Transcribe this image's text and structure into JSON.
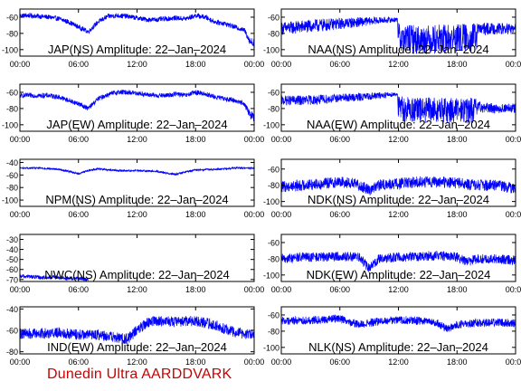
{
  "footer_text": "Dunedin Ultra AARDDVARK",
  "colors": {
    "trace": "#0000ff",
    "footer": "#cc0000",
    "axis": "#000000",
    "background": "#ffffff"
  },
  "chart_data": [
    {
      "type": "line",
      "title": "JAP(NS) Amplitude: 22–Jan–2024",
      "x_ticks": [
        "00:00",
        "06:00",
        "12:00",
        "18:00",
        "00:00"
      ],
      "xlim_hours": [
        0,
        24
      ],
      "y_ticks": [
        -60,
        -80,
        -100
      ],
      "ylim": [
        -108,
        -50
      ],
      "series": [
        {
          "x_hours": [
            0,
            1,
            2,
            3,
            4,
            5,
            6,
            7,
            8,
            9,
            10,
            11,
            12,
            13,
            14,
            15,
            16,
            17,
            18,
            19,
            20,
            21,
            22,
            23,
            23.6,
            24
          ],
          "center": [
            -58,
            -58,
            -59,
            -60,
            -62,
            -66,
            -72,
            -78,
            -66,
            -59,
            -58,
            -59,
            -61,
            -63,
            -63,
            -62,
            -61,
            -62,
            -58,
            -60,
            -66,
            -68,
            -72,
            -76,
            -90,
            -92
          ],
          "band": [
            3,
            3,
            3,
            3,
            3,
            3,
            3,
            3,
            3,
            3,
            3,
            3,
            3,
            3,
            3,
            3,
            3,
            3,
            3,
            3,
            3,
            3,
            3,
            3,
            5,
            6
          ]
        }
      ]
    },
    {
      "type": "line",
      "title": "NAA(NS) Amplitude: 22–Jan–2024",
      "x_ticks": [
        "00:00",
        "06:00",
        "12:00",
        "18:00",
        "00:00"
      ],
      "xlim_hours": [
        0,
        24
      ],
      "y_ticks": [
        -60,
        -80,
        -100
      ],
      "ylim": [
        -108,
        -50
      ],
      "series": [
        {
          "x_hours": [
            0,
            2,
            4,
            6,
            8,
            10,
            11.9,
            12,
            14,
            16,
            18,
            20,
            20.1,
            22,
            24
          ],
          "center": [
            -74,
            -72,
            -70,
            -68,
            -66,
            -64,
            -63,
            -85,
            -88,
            -87,
            -86,
            -85,
            -75,
            -74,
            -75
          ],
          "band": [
            8,
            8,
            8,
            7,
            6,
            4,
            3,
            18,
            18,
            18,
            18,
            18,
            8,
            7,
            7
          ]
        }
      ]
    },
    {
      "type": "line",
      "title": "JAP(EW) Amplitude: 22–Jan–2024",
      "x_ticks": [
        "00:00",
        "06:00",
        "12:00",
        "18:00",
        "00:00"
      ],
      "xlim_hours": [
        0,
        24
      ],
      "y_ticks": [
        -60,
        -80,
        -100
      ],
      "ylim": [
        -108,
        -50
      ],
      "series": [
        {
          "x_hours": [
            0,
            1,
            2,
            3,
            4,
            5,
            6,
            7,
            8,
            9,
            10,
            11,
            12,
            13,
            14,
            15,
            16,
            17,
            18,
            19,
            20,
            21,
            22,
            23,
            23.6,
            24
          ],
          "center": [
            -64,
            -64,
            -64,
            -64,
            -66,
            -70,
            -74,
            -80,
            -68,
            -63,
            -60,
            -60,
            -61,
            -63,
            -64,
            -64,
            -62,
            -64,
            -60,
            -62,
            -66,
            -68,
            -70,
            -74,
            -88,
            -90
          ],
          "band": [
            3,
            3,
            3,
            3,
            3,
            3,
            3,
            3,
            3,
            3,
            3,
            3,
            3,
            3,
            3,
            3,
            3,
            3,
            3,
            3,
            3,
            3,
            3,
            3,
            5,
            6
          ]
        }
      ]
    },
    {
      "type": "line",
      "title": "NAA(EW) Amplitude: 22–Jan–2024",
      "x_ticks": [
        "00:00",
        "06:00",
        "12:00",
        "18:00",
        "00:00"
      ],
      "xlim_hours": [
        0,
        24
      ],
      "y_ticks": [
        -60,
        -80,
        -100
      ],
      "ylim": [
        -108,
        -50
      ],
      "series": [
        {
          "x_hours": [
            0,
            2,
            4,
            6,
            8,
            10,
            11.9,
            12,
            14,
            16,
            18,
            20,
            20.1,
            22,
            24
          ],
          "center": [
            -70,
            -70,
            -69,
            -67,
            -66,
            -64,
            -62,
            -80,
            -82,
            -82,
            -82,
            -82,
            -78,
            -80,
            -80
          ],
          "band": [
            6,
            6,
            6,
            5,
            5,
            4,
            3,
            16,
            16,
            16,
            16,
            16,
            7,
            6,
            6
          ]
        }
      ]
    },
    {
      "type": "line",
      "title": "NPM(NS) Amplitude: 22–Jan–2024",
      "x_ticks": [
        "00:00",
        "06:00",
        "12:00",
        "18:00",
        "00:00"
      ],
      "xlim_hours": [
        0,
        24
      ],
      "y_ticks": [
        -40,
        -60,
        -80,
        -100
      ],
      "ylim": [
        -110,
        -35
      ],
      "series": [
        {
          "x_hours": [
            0,
            2,
            4,
            5,
            6,
            7,
            8,
            10,
            12,
            14,
            15,
            16,
            17,
            18,
            20,
            22,
            24
          ],
          "center": [
            -49,
            -49,
            -51,
            -54,
            -58,
            -53,
            -50,
            -53,
            -53,
            -54,
            -57,
            -59,
            -55,
            -52,
            -51,
            -49,
            -49
          ],
          "band": [
            1.5,
            1.5,
            1.5,
            1.5,
            1.5,
            1.5,
            1.5,
            1.5,
            1.5,
            1.5,
            1.5,
            1.5,
            1.5,
            1.5,
            1.5,
            1.5,
            1.5
          ]
        }
      ]
    },
    {
      "type": "line",
      "title": "NDK(NS) Amplitude: 22–Jan–2024",
      "x_ticks": [
        "00:00",
        "06:00",
        "12:00",
        "18:00",
        "00:00"
      ],
      "xlim_hours": [
        0,
        24
      ],
      "y_ticks": [
        -60,
        -80,
        -100
      ],
      "ylim": [
        -106,
        -48
      ],
      "series": [
        {
          "x_hours": [
            0,
            2,
            4,
            6,
            7,
            8,
            9,
            10,
            12,
            14,
            16,
            18,
            19,
            20,
            22,
            23,
            24
          ],
          "center": [
            -82,
            -80,
            -78,
            -76,
            -77,
            -80,
            -86,
            -80,
            -78,
            -76,
            -76,
            -77,
            -79,
            -80,
            -80,
            -82,
            -84
          ],
          "band": [
            7,
            7,
            7,
            7,
            7,
            7,
            7,
            7,
            7,
            7,
            7,
            7,
            7,
            7,
            7,
            7,
            7
          ]
        }
      ]
    },
    {
      "type": "line",
      "title": "NWC(NS) Amplitude: 22–Jan–2024",
      "x_ticks": [
        "00:00",
        "06:00",
        "12:00",
        "18:00",
        "00:00"
      ],
      "xlim_hours": [
        0,
        24
      ],
      "y_ticks": [
        -30,
        -40,
        -50,
        -60,
        -70
      ],
      "ylim": [
        -72,
        -25
      ],
      "series": [
        {
          "x_hours": [
            0,
            1,
            2,
            3,
            4,
            5,
            6,
            7
          ],
          "center": [
            -67,
            -67,
            -68,
            -68,
            -68,
            -69,
            -69,
            -70
          ],
          "band": [
            2,
            2,
            2,
            2,
            2,
            2,
            2,
            2
          ]
        }
      ]
    },
    {
      "type": "line",
      "title": "NDK(EW) Amplitude: 22–Jan–2024",
      "x_ticks": [
        "00:00",
        "06:00",
        "12:00",
        "18:00",
        "00:00"
      ],
      "xlim_hours": [
        0,
        24
      ],
      "y_ticks": [
        -60,
        -80,
        -100
      ],
      "ylim": [
        -108,
        -50
      ],
      "series": [
        {
          "x_hours": [
            0,
            2,
            4,
            6,
            8,
            9,
            10,
            12,
            14,
            16,
            18,
            19,
            20,
            22,
            24
          ],
          "center": [
            -80,
            -78,
            -78,
            -77,
            -78,
            -92,
            -80,
            -78,
            -77,
            -76,
            -78,
            -84,
            -80,
            -80,
            -82
          ],
          "band": [
            6,
            6,
            6,
            6,
            6,
            6,
            6,
            6,
            6,
            6,
            6,
            6,
            6,
            6,
            6
          ]
        }
      ]
    },
    {
      "type": "line",
      "title": "IND(EW) Amplitude: 22–Jan–2024",
      "x_ticks": [
        "00:00",
        "06:00",
        "12:00",
        "18:00",
        "00:00"
      ],
      "xlim_hours": [
        0,
        24
      ],
      "y_ticks": [
        -40,
        -60,
        -80
      ],
      "ylim": [
        -82,
        -38
      ],
      "series": [
        {
          "x_hours": [
            0,
            2,
            4,
            6,
            8,
            10,
            11,
            12,
            13,
            14,
            16,
            18,
            20,
            22,
            24
          ],
          "center": [
            -63,
            -63,
            -62,
            -64,
            -64,
            -67,
            -68,
            -60,
            -53,
            -51,
            -52,
            -51,
            -55,
            -62,
            -64
          ],
          "band": [
            5,
            5,
            5,
            5,
            5,
            5,
            5,
            5,
            5,
            5,
            5,
            5,
            5,
            5,
            5
          ]
        }
      ]
    },
    {
      "type": "line",
      "title": "NLK(NS) Amplitude: 22–Jan–2024",
      "x_ticks": [
        "00:00",
        "06:00",
        "12:00",
        "18:00",
        "00:00"
      ],
      "xlim_hours": [
        0,
        24
      ],
      "y_ticks": [
        -60,
        -80,
        -100
      ],
      "ylim": [
        -108,
        -50
      ],
      "series": [
        {
          "x_hours": [
            0,
            2,
            4,
            6,
            8,
            10,
            12,
            14,
            16,
            17,
            18,
            20,
            22,
            24
          ],
          "center": [
            -67,
            -67,
            -66,
            -64,
            -72,
            -68,
            -66,
            -67,
            -70,
            -78,
            -72,
            -70,
            -69,
            -70
          ],
          "band": [
            5,
            5,
            5,
            5,
            5,
            5,
            5,
            5,
            5,
            5,
            5,
            5,
            5,
            5
          ]
        }
      ]
    }
  ]
}
